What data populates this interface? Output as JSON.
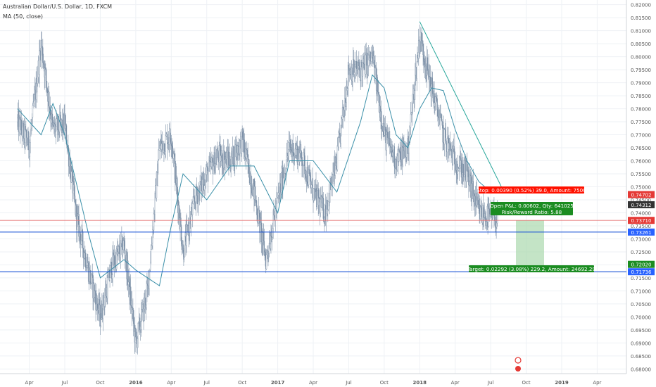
{
  "legend": {
    "symbol_title": "Australian Dollar/U.S. Dollar, 1D, FXCM",
    "indicator": "MA (50, close)"
  },
  "colors": {
    "candles": "#7b8fa6",
    "ma_line": "#3a8fa8",
    "trend_line": "#26a69a",
    "h_line": "#1e56d6",
    "stop_line": "#e57373",
    "stop_badge": "#ff1100",
    "target_zone": "#a5d6a7",
    "target_badge": "#1b8c21",
    "price_badge_blue": "#2962ff",
    "price_badge_green": "#1b8c21",
    "price_badge_red": "#e53935",
    "price_badge_dark": "#333333"
  },
  "position": {
    "stop_label": "Stop: 0.00390 (0.52%) 39.0, Amount: 7500",
    "open_label": "Open P&L: 0.00602, Qty: 641025",
    "rr_label": "Risk/Reward Ratio: 5.88",
    "target_label": "Target: 0.02292 (3.08%) 229.2, Amount: 24692.29"
  },
  "chart_data": {
    "type": "candlestick",
    "title": "Australian Dollar/U.S. Dollar, 1D, FXCM",
    "indicator": "MA (50, close)",
    "x_tick_labels": [
      "Apr",
      "Jul",
      "Oct",
      "2016",
      "Apr",
      "Jul",
      "Oct",
      "2017",
      "Apr",
      "Jul",
      "Oct",
      "2018",
      "Apr",
      "Jul",
      "Oct",
      "2019",
      "Apr"
    ],
    "y_tick_labels": [
      "0.82000",
      "0.81500",
      "0.81000",
      "0.80500",
      "0.80000",
      "0.79500",
      "0.79000",
      "0.78500",
      "0.78000",
      "0.77500",
      "0.77000",
      "0.76500",
      "0.76000",
      "0.75500",
      "0.75000",
      "0.74500",
      "0.74000",
      "0.73500",
      "0.73000",
      "0.72500",
      "0.72000",
      "0.71500",
      "0.71000",
      "0.70500",
      "0.70000",
      "0.69500",
      "0.69000",
      "0.68500",
      "0.68000"
    ],
    "ylim": [
      0.6782,
      0.8218
    ],
    "horizontal_lines": [
      0.73261,
      0.71736
    ],
    "stop_line": 0.7371,
    "trend_line": {
      "from": {
        "date": "2018-01",
        "price": 0.8135
      },
      "to": {
        "date": "2018-07",
        "price": 0.7485
      }
    },
    "price_badges": [
      "0.74702",
      "0.74312",
      "0.73710",
      "0.73261",
      "0.72020",
      "0.71736"
    ],
    "series": [
      {
        "name": "AUD/USD",
        "points": [
          {
            "date": "2015-03",
            "close": 0.775
          },
          {
            "date": "2015-04",
            "close": 0.766
          },
          {
            "date": "2015-05",
            "close": 0.805
          },
          {
            "date": "2015-06",
            "close": 0.772
          },
          {
            "date": "2015-07",
            "close": 0.774
          },
          {
            "date": "2015-08",
            "close": 0.738
          },
          {
            "date": "2015-09",
            "close": 0.718
          },
          {
            "date": "2015-10",
            "close": 0.7
          },
          {
            "date": "2015-11",
            "close": 0.72
          },
          {
            "date": "2015-12",
            "close": 0.728
          },
          {
            "date": "2016-01",
            "close": 0.69
          },
          {
            "date": "2016-02",
            "close": 0.71
          },
          {
            "date": "2016-03",
            "close": 0.765
          },
          {
            "date": "2016-04",
            "close": 0.77
          },
          {
            "date": "2016-05",
            "close": 0.725
          },
          {
            "date": "2016-06",
            "close": 0.745
          },
          {
            "date": "2016-07",
            "close": 0.755
          },
          {
            "date": "2016-08",
            "close": 0.762
          },
          {
            "date": "2016-09",
            "close": 0.76
          },
          {
            "date": "2016-10",
            "close": 0.768
          },
          {
            "date": "2016-11",
            "close": 0.748
          },
          {
            "date": "2016-12",
            "close": 0.722
          },
          {
            "date": "2017-01",
            "close": 0.745
          },
          {
            "date": "2017-02",
            "close": 0.765
          },
          {
            "date": "2017-03",
            "close": 0.762
          },
          {
            "date": "2017-04",
            "close": 0.748
          },
          {
            "date": "2017-05",
            "close": 0.74
          },
          {
            "date": "2017-06",
            "close": 0.76
          },
          {
            "date": "2017-07",
            "close": 0.795
          },
          {
            "date": "2017-08",
            "close": 0.795
          },
          {
            "date": "2017-09",
            "close": 0.8
          },
          {
            "date": "2017-10",
            "close": 0.77
          },
          {
            "date": "2017-11",
            "close": 0.76
          },
          {
            "date": "2017-12",
            "close": 0.765
          },
          {
            "date": "2018-01",
            "close": 0.808
          },
          {
            "date": "2018-02",
            "close": 0.788
          },
          {
            "date": "2018-03",
            "close": 0.77
          },
          {
            "date": "2018-04",
            "close": 0.76
          },
          {
            "date": "2018-05",
            "close": 0.755
          },
          {
            "date": "2018-06",
            "close": 0.74
          },
          {
            "date": "2018-07",
            "close": 0.738
          }
        ]
      },
      {
        "name": "MA (50, close)",
        "points": [
          {
            "date": "2015-03",
            "close": 0.78
          },
          {
            "date": "2015-05",
            "close": 0.77
          },
          {
            "date": "2015-06",
            "close": 0.782
          },
          {
            "date": "2015-07",
            "close": 0.77
          },
          {
            "date": "2015-09",
            "close": 0.732
          },
          {
            "date": "2015-10",
            "close": 0.715
          },
          {
            "date": "2015-12",
            "close": 0.722
          },
          {
            "date": "2016-01",
            "close": 0.718
          },
          {
            "date": "2016-03",
            "close": 0.712
          },
          {
            "date": "2016-04",
            "close": 0.735
          },
          {
            "date": "2016-05",
            "close": 0.755
          },
          {
            "date": "2016-07",
            "close": 0.745
          },
          {
            "date": "2016-09",
            "close": 0.758
          },
          {
            "date": "2016-11",
            "close": 0.758
          },
          {
            "date": "2017-01",
            "close": 0.74
          },
          {
            "date": "2017-02",
            "close": 0.76
          },
          {
            "date": "2017-04",
            "close": 0.76
          },
          {
            "date": "2017-06",
            "close": 0.748
          },
          {
            "date": "2017-08",
            "close": 0.775
          },
          {
            "date": "2017-09",
            "close": 0.793
          },
          {
            "date": "2017-10",
            "close": 0.788
          },
          {
            "date": "2017-11",
            "close": 0.77
          },
          {
            "date": "2017-12",
            "close": 0.765
          },
          {
            "date": "2018-01",
            "close": 0.78
          },
          {
            "date": "2018-02",
            "close": 0.788
          },
          {
            "date": "2018-03",
            "close": 0.787
          },
          {
            "date": "2018-04",
            "close": 0.772
          },
          {
            "date": "2018-05",
            "close": 0.76
          },
          {
            "date": "2018-06",
            "close": 0.752
          },
          {
            "date": "2018-07",
            "close": 0.748
          }
        ]
      }
    ]
  }
}
